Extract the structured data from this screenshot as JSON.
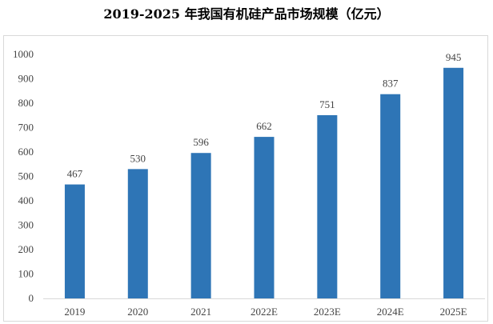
{
  "chart_data": {
    "type": "bar",
    "title": "2019-2025 年我国有机硅产品市场规模（亿元）",
    "categories": [
      "2019",
      "2020",
      "2021",
      "2022E",
      "2023E",
      "2024E",
      "2025E"
    ],
    "values": [
      467,
      530,
      596,
      662,
      751,
      837,
      945
    ],
    "data_labels": [
      "467",
      "530",
      "596",
      "662",
      "751",
      "837",
      "945"
    ],
    "ylim": [
      0,
      1000
    ],
    "yticks": [
      "0",
      "100",
      "200",
      "300",
      "400",
      "500",
      "600",
      "700",
      "800",
      "900",
      "1000"
    ],
    "xlabel": "",
    "ylabel": "",
    "grid": false,
    "legend": "none",
    "bar_color": "#2E75B6"
  }
}
